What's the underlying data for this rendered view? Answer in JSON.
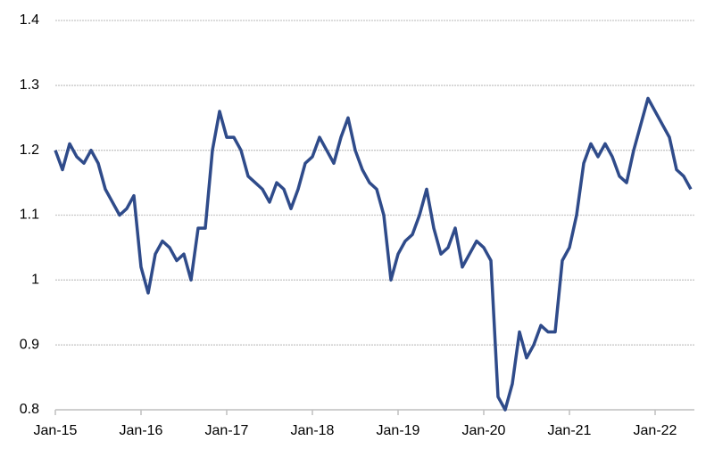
{
  "chart_data": {
    "type": "line",
    "categories": [
      "Jan-15",
      null,
      null,
      null,
      null,
      null,
      null,
      null,
      null,
      null,
      null,
      null,
      "Jan-16",
      null,
      null,
      null,
      null,
      null,
      null,
      null,
      null,
      null,
      null,
      null,
      "Jan-17",
      null,
      null,
      null,
      null,
      null,
      null,
      null,
      null,
      null,
      null,
      null,
      "Jan-18",
      null,
      null,
      null,
      null,
      null,
      null,
      null,
      null,
      null,
      null,
      null,
      "Jan-19",
      null,
      null,
      null,
      null,
      null,
      null,
      null,
      null,
      null,
      null,
      null,
      "Jan-20",
      null,
      null,
      null,
      null,
      null,
      null,
      null,
      null,
      null,
      null,
      null,
      "Jan-21",
      null,
      null,
      null,
      null,
      null,
      null,
      null,
      null,
      null,
      null,
      null,
      "Jan-22",
      null,
      null,
      null,
      null,
      null
    ],
    "series": [
      {
        "color": "#2f4b8a",
        "values": [
          1.2,
          1.17,
          1.21,
          1.19,
          1.18,
          1.2,
          1.18,
          1.14,
          1.12,
          1.1,
          1.11,
          1.13,
          1.02,
          0.98,
          1.04,
          1.06,
          1.05,
          1.03,
          1.04,
          1.0,
          1.08,
          1.08,
          1.2,
          1.26,
          1.22,
          1.22,
          1.2,
          1.16,
          1.15,
          1.14,
          1.12,
          1.15,
          1.14,
          1.11,
          1.14,
          1.18,
          1.19,
          1.22,
          1.2,
          1.18,
          1.22,
          1.25,
          1.2,
          1.17,
          1.15,
          1.14,
          1.1,
          1.0,
          1.04,
          1.06,
          1.07,
          1.1,
          1.14,
          1.08,
          1.04,
          1.05,
          1.08,
          1.02,
          1.04,
          1.06,
          1.05,
          1.03,
          0.82,
          0.8,
          0.84,
          0.92,
          0.88,
          0.9,
          0.93,
          0.92,
          0.92,
          1.03,
          1.05,
          1.1,
          1.18,
          1.21,
          1.19,
          1.21,
          1.19,
          1.16,
          1.15,
          1.2,
          1.24,
          1.28,
          1.26,
          1.24,
          1.22,
          1.17,
          1.16,
          1.14
        ]
      }
    ],
    "ylim": [
      0.8,
      1.4
    ],
    "yticks": [
      0.8,
      0.9,
      1,
      1.1,
      1.2,
      1.3,
      1.4
    ],
    "grid": true
  }
}
